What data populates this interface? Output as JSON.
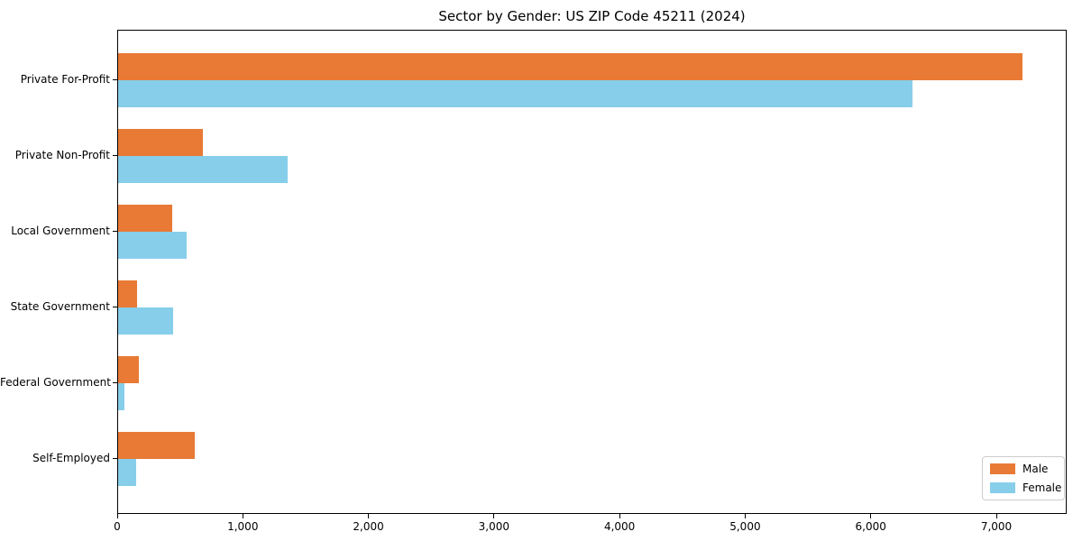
{
  "chart_data": {
    "type": "bar",
    "orientation": "horizontal",
    "title": "Sector by Gender: US ZIP Code 45211 (2024)",
    "categories": [
      "Private For-Profit",
      "Private Non-Profit",
      "Local Government",
      "State Government",
      "Federal Government",
      "Self-Employed"
    ],
    "series": [
      {
        "name": "Male",
        "color": "#e87a35",
        "values": [
          7215,
          675,
          435,
          150,
          165,
          615
        ]
      },
      {
        "name": "Female",
        "color": "#87ceeb",
        "values": [
          6340,
          1350,
          550,
          440,
          50,
          145
        ]
      }
    ],
    "xlabel": "",
    "ylabel": "",
    "xlim": [
      0,
      7560
    ],
    "x_ticks": [
      0,
      1000,
      2000,
      3000,
      4000,
      5000,
      6000,
      7000
    ],
    "x_tick_labels": [
      "0",
      "1,000",
      "2,000",
      "3,000",
      "4,000",
      "5,000",
      "6,000",
      "7,000"
    ],
    "grid": false,
    "legend": {
      "position": "lower right",
      "entries": [
        "Male",
        "Female"
      ]
    },
    "colors": {
      "background": "#ffffff",
      "spine": "#000000",
      "legend_border": "#cccccc"
    }
  }
}
